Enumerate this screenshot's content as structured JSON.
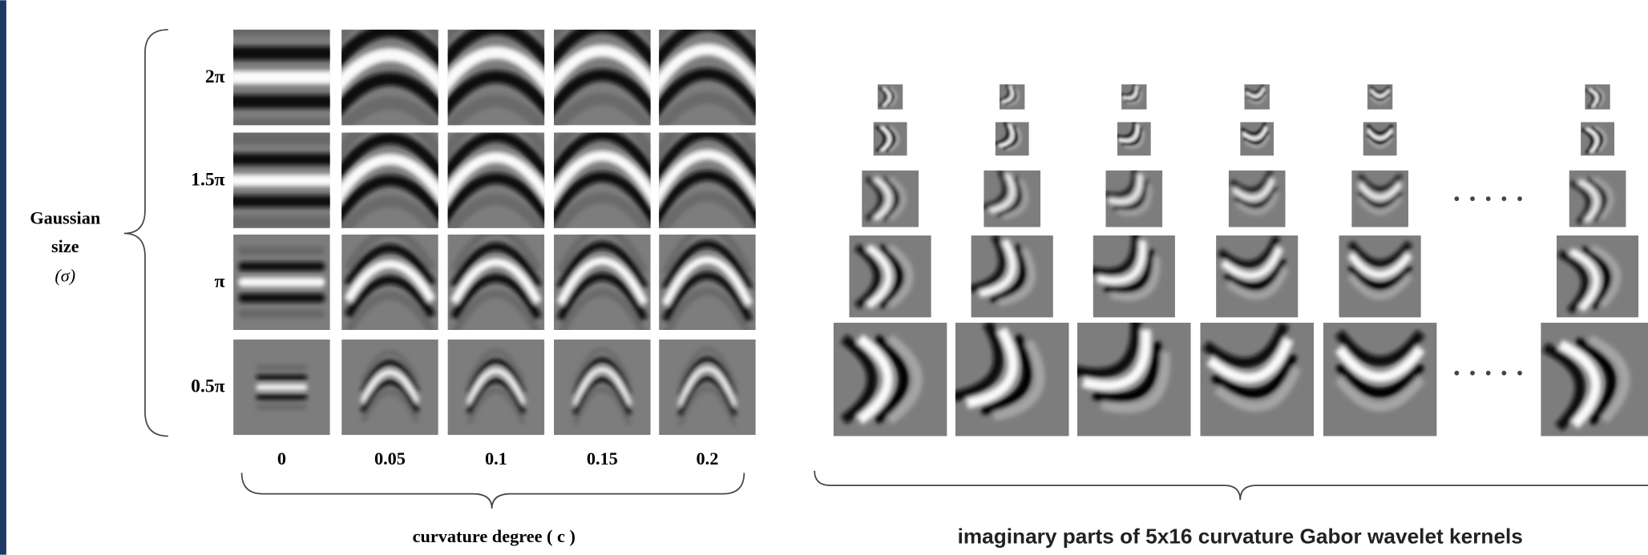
{
  "left_figure": {
    "y_label": [
      "Gaussian",
      "size",
      "(σ)"
    ],
    "row_labels": [
      "2π",
      "1.5π",
      "π",
      "0.5π"
    ],
    "column_labels": [
      "0",
      "0.05",
      "0.1",
      "0.15",
      "0.2"
    ],
    "x_label": "curvature degree ( c )"
  },
  "right_figure": {
    "caption": "imaginary parts of 5x16 curvature Gabor wavelet kernels"
  }
}
